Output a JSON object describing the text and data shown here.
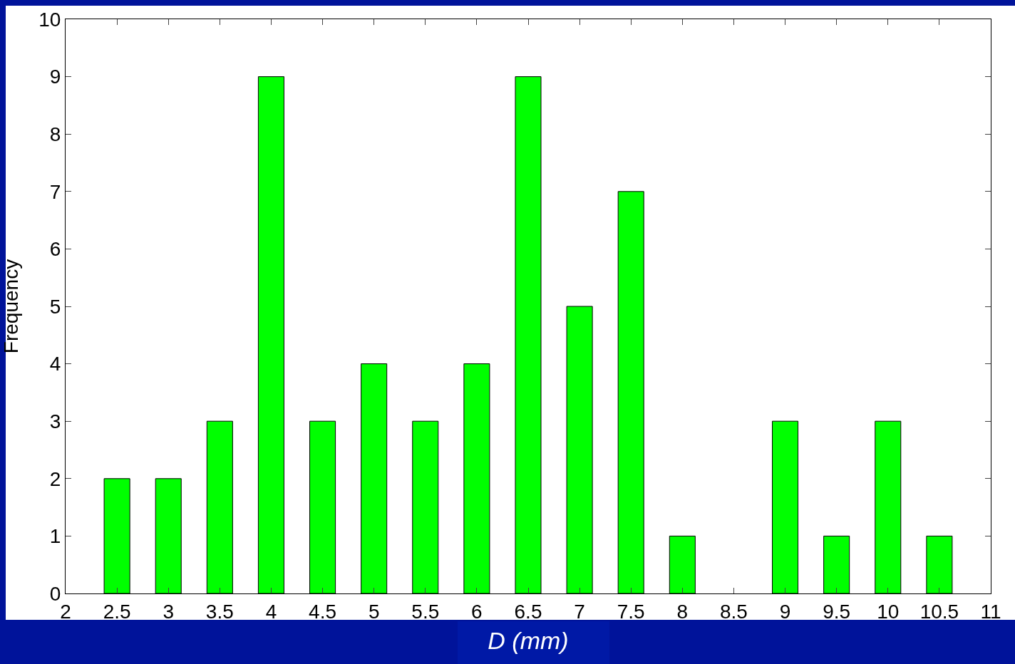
{
  "chart_data": {
    "type": "bar",
    "xlabel": "D (mm)",
    "ylabel": "Frequency",
    "x": [
      2.5,
      3,
      3.5,
      4,
      4.5,
      5,
      5.5,
      6,
      6.5,
      7,
      7.5,
      8,
      8.5,
      9,
      9.5,
      10,
      10.5
    ],
    "values": [
      2,
      2,
      3,
      9,
      3,
      4,
      3,
      4,
      9,
      5,
      7,
      1,
      0,
      3,
      1,
      3,
      1
    ],
    "color": "#00ff00",
    "xlim": [
      2,
      11
    ],
    "xticks": [
      2,
      2.5,
      3,
      3.5,
      4,
      4.5,
      5,
      5.5,
      6,
      6.5,
      7,
      7.5,
      8,
      8.5,
      9,
      9.5,
      10,
      10.5,
      11
    ],
    "ylim": [
      0,
      10
    ],
    "yticks": [
      0,
      1,
      2,
      3,
      4,
      5,
      6,
      7,
      8,
      9,
      10
    ]
  }
}
